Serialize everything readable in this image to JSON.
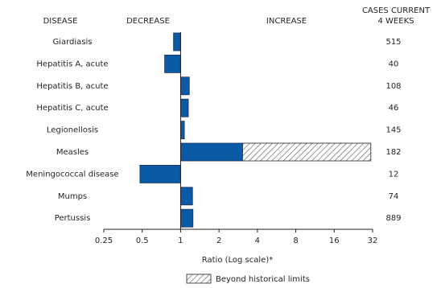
{
  "chart_data": {
    "type": "bar",
    "orientation": "horizontal",
    "headers": {
      "disease": "DISEASE",
      "decrease": "DECREASE",
      "increase": "INCREASE",
      "cases": [
        "CASES CURRENT",
        "4 WEEKS"
      ]
    },
    "categories": [
      "Giardiasis",
      "Hepatitis A, acute",
      "Hepatitis B, acute",
      "Hepatitis C, acute",
      "Legionellosis",
      "Measles",
      "Meningococcal disease",
      "Mumps",
      "Pertussis"
    ],
    "values": [
      0.88,
      0.75,
      1.17,
      1.15,
      1.07,
      31,
      0.48,
      1.24,
      1.25
    ],
    "color": "#0b5aa6",
    "beyond_historical_limits": {
      "name": "Beyond historical limits",
      "values": [
        null,
        null,
        null,
        null,
        null,
        3.06,
        null,
        null,
        null
      ]
    },
    "cases": [
      515,
      40,
      108,
      46,
      145,
      182,
      12,
      74,
      889
    ],
    "xlabel": "Ratio (Log scale)*",
    "xscale": "log",
    "xlim": [
      0.25,
      32
    ],
    "xticks": [
      0.25,
      0.5,
      1,
      2,
      4,
      8,
      16,
      32
    ]
  }
}
